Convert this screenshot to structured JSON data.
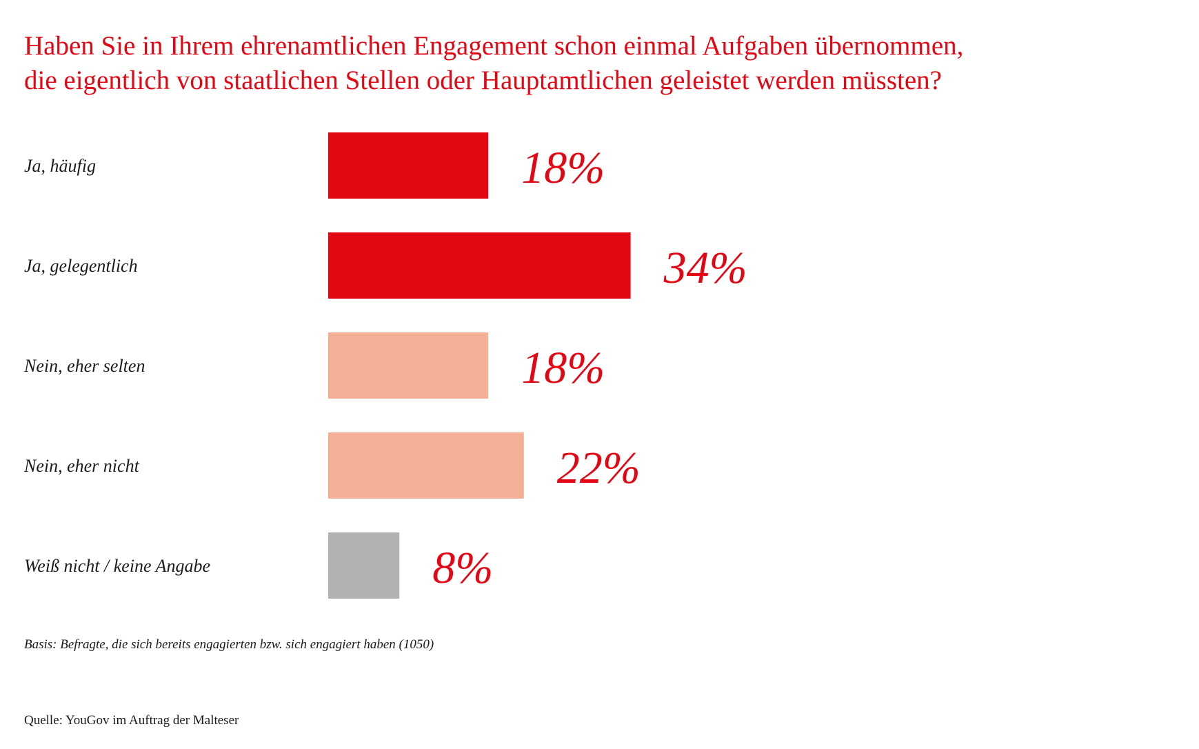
{
  "chart_data": {
    "type": "bar",
    "orientation": "horizontal",
    "title_lines": [
      "Haben Sie in Ihrem ehrenamtlichen Engagement schon einmal Aufgaben übernommen,",
      "die eigentlich von staatlichen Stellen oder Hauptamtlichen geleistet werden müssten?"
    ],
    "categories": [
      "Ja, häufig",
      "Ja, gelegentlich",
      "Nein, eher selten",
      "Nein, eher nicht",
      "Weiß nicht / keine Angabe"
    ],
    "values": [
      18,
      34,
      18,
      22,
      8
    ],
    "value_labels": [
      "18%",
      "34%",
      "18%",
      "22%",
      "8%"
    ],
    "bar_colors": [
      "#e30613",
      "#e30613",
      "#f4b097",
      "#f4b097",
      "#b2b2b2"
    ],
    "unit": "%",
    "grid": false,
    "axes_visible": false
  },
  "note": "Basis: Befragte, die sich bereits engagierten bzw. sich engagiert haben (1050)",
  "source": "Quelle: YouGov im Auftrag der Malteser",
  "colors": {
    "title": "#e30613",
    "value_labels": "#e30613"
  }
}
